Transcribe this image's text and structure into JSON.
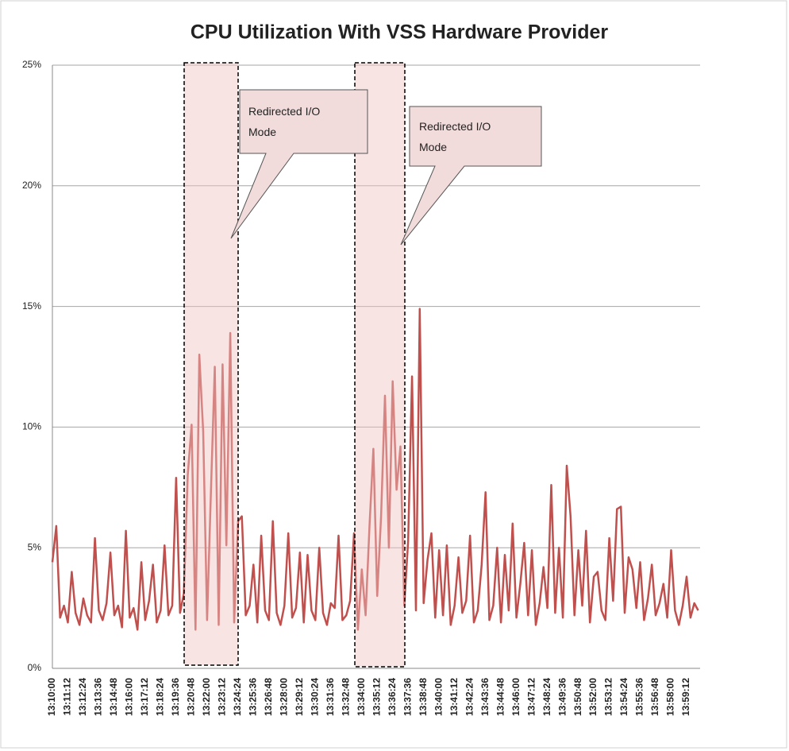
{
  "chart_data": {
    "type": "line",
    "title": "CPU Utilization With VSS Hardware  Provider",
    "categories": [
      "13:10:00",
      null,
      null,
      null,
      "13:11:12",
      null,
      null,
      null,
      "13:12:24",
      null,
      null,
      null,
      "13:13:36",
      null,
      null,
      null,
      "13:14:48",
      null,
      null,
      null,
      "13:16:00",
      null,
      null,
      null,
      "13:17:12",
      null,
      null,
      null,
      "13:18:24",
      null,
      null,
      null,
      "13:19:36",
      null,
      null,
      null,
      "13:20:48",
      null,
      null,
      null,
      "13:22:00",
      null,
      null,
      null,
      "13:23:12",
      null,
      null,
      null,
      "13:24:24",
      null,
      null,
      null,
      "13:25:36",
      null,
      null,
      null,
      "13:26:48",
      null,
      null,
      null,
      "13:28:00",
      null,
      null,
      null,
      "13:29:12",
      null,
      null,
      null,
      "13:30:24",
      null,
      null,
      null,
      "13:31:36",
      null,
      null,
      null,
      "13:32:48",
      null,
      null,
      null,
      "13:34:00",
      null,
      null,
      null,
      "13:35:12",
      null,
      null,
      null,
      "13:36:24",
      null,
      null,
      null,
      "13:37:36",
      null,
      null,
      null,
      "13:38:48",
      null,
      null,
      null,
      "13:40:00",
      null,
      null,
      null,
      "13:41:12",
      null,
      null,
      null,
      "13:42:24",
      null,
      null,
      null,
      "13:43:36",
      null,
      null,
      null,
      "13:44:48",
      null,
      null,
      null,
      "13:46:00",
      null,
      null,
      null,
      "13:47:12",
      null,
      null,
      null,
      "13:48:24",
      null,
      null,
      null,
      "13:49:36",
      null,
      null,
      null,
      "13:50:48",
      null,
      null,
      null,
      "13:52:00",
      null,
      null,
      null,
      "13:53:12",
      null,
      null,
      null,
      "13:54:24",
      null,
      null,
      null,
      "13:55:36",
      null,
      null,
      null,
      "13:56:48",
      null,
      null,
      null,
      "13:58:00",
      null,
      null,
      null,
      "13:59:12",
      null,
      null,
      null
    ],
    "series": [
      {
        "name": "CPU",
        "color": "#c0504d",
        "values": [
          4.4,
          5.9,
          2.1,
          2.6,
          1.9,
          4.0,
          2.3,
          1.8,
          2.9,
          2.2,
          1.9,
          5.4,
          2.4,
          2.0,
          2.7,
          4.8,
          2.2,
          2.6,
          1.7,
          5.7,
          2.1,
          2.5,
          1.6,
          4.4,
          2.0,
          2.8,
          4.3,
          1.9,
          2.4,
          5.1,
          2.2,
          2.6,
          7.9,
          2.3,
          3.1,
          8.0,
          10.1,
          1.6,
          13.0,
          9.8,
          2.0,
          7.4,
          12.5,
          1.8,
          12.6,
          5.1,
          13.9,
          1.9,
          6.1,
          6.3,
          2.2,
          2.6,
          4.3,
          1.9,
          5.5,
          2.4,
          2.0,
          6.1,
          2.3,
          1.8,
          2.6,
          5.6,
          2.1,
          2.5,
          4.8,
          1.9,
          4.7,
          2.4,
          2.0,
          5.0,
          2.3,
          1.8,
          2.7,
          2.5,
          5.5,
          2.0,
          2.2,
          2.8,
          5.6,
          1.6,
          4.1,
          2.2,
          5.9,
          9.1,
          3.0,
          6.3,
          11.3,
          5.0,
          11.9,
          7.4,
          9.2,
          2.6,
          5.3,
          12.1,
          2.4,
          14.9,
          2.7,
          4.5,
          5.6,
          2.1,
          4.9,
          2.2,
          5.1,
          1.8,
          2.6,
          4.6,
          2.3,
          2.8,
          5.5,
          1.9,
          2.4,
          4.3,
          7.3,
          2.0,
          2.6,
          5.0,
          1.9,
          4.7,
          2.4,
          6.0,
          2.1,
          3.5,
          5.2,
          2.2,
          4.9,
          1.8,
          2.7,
          4.2,
          2.5,
          7.6,
          2.3,
          5.0,
          2.1,
          8.4,
          6.3,
          2.2,
          4.9,
          2.6,
          5.7,
          1.9,
          3.8,
          4.0,
          2.4,
          2.0,
          5.4,
          2.8,
          6.6,
          6.7,
          2.3,
          4.6,
          4.1,
          2.5,
          4.4,
          2.0,
          2.9,
          4.3,
          2.2,
          2.7,
          3.5,
          2.1,
          4.9,
          2.4,
          1.8,
          2.6,
          3.8,
          2.1,
          2.7,
          2.4
        ]
      }
    ],
    "ylim": [
      0,
      25
    ],
    "yticks": [
      {
        "value": 0,
        "label": "0%"
      },
      {
        "value": 5,
        "label": "5%"
      },
      {
        "value": 10,
        "label": "10%"
      },
      {
        "value": 15,
        "label": "15%"
      },
      {
        "value": 20,
        "label": "20%"
      },
      {
        "value": 25,
        "label": "25%"
      }
    ],
    "grid": true,
    "annotations": [
      {
        "text": "Redirected I/O Mode"
      },
      {
        "text": "Redirected I/O Mode"
      }
    ]
  }
}
